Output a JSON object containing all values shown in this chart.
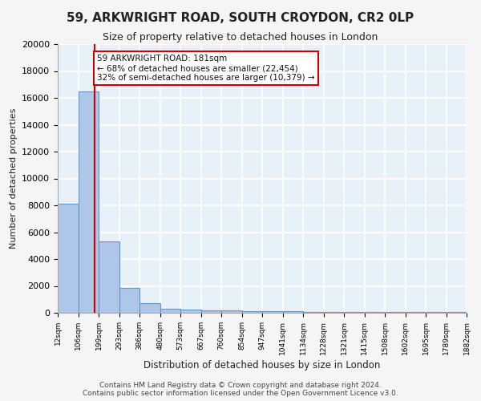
{
  "title1": "59, ARKWRIGHT ROAD, SOUTH CROYDON, CR2 0LP",
  "title2": "Size of property relative to detached houses in London",
  "xlabel": "Distribution of detached houses by size in London",
  "ylabel": "Number of detached properties",
  "bin_edges": [
    12,
    106,
    199,
    293,
    386,
    480,
    573,
    667,
    760,
    854,
    947,
    1041,
    1134,
    1228,
    1321,
    1415,
    1508,
    1602,
    1695,
    1789,
    1882
  ],
  "bar_heights": [
    8100,
    16500,
    5300,
    1850,
    700,
    300,
    230,
    200,
    160,
    130,
    110,
    90,
    80,
    70,
    60,
    50,
    45,
    40,
    35,
    30
  ],
  "bar_color": "#aec6e8",
  "bar_edge_color": "#5b9bd5",
  "property_size": 181,
  "red_line_color": "#cc0000",
  "annotation_text": "59 ARKWRIGHT ROAD: 181sqm\n← 68% of detached houses are smaller (22,454)\n32% of semi-detached houses are larger (10,379) →",
  "annotation_box_color": "#cc0000",
  "background_color": "#e8f0f8",
  "grid_color": "#ffffff",
  "ylim": [
    0,
    20000
  ],
  "yticks": [
    0,
    2000,
    4000,
    6000,
    8000,
    10000,
    12000,
    14000,
    16000,
    18000,
    20000
  ],
  "footer_text": "Contains HM Land Registry data © Crown copyright and database right 2024.\nContains public sector information licensed under the Open Government Licence v3.0.",
  "tick_labels": [
    "12sqm",
    "106sqm",
    "199sqm",
    "293sqm",
    "386sqm",
    "480sqm",
    "573sqm",
    "667sqm",
    "760sqm",
    "854sqm",
    "947sqm",
    "1041sqm",
    "1134sqm",
    "1228sqm",
    "1321sqm",
    "1415sqm",
    "1508sqm",
    "1602sqm",
    "1695sqm",
    "1789sqm",
    "1882sqm"
  ]
}
